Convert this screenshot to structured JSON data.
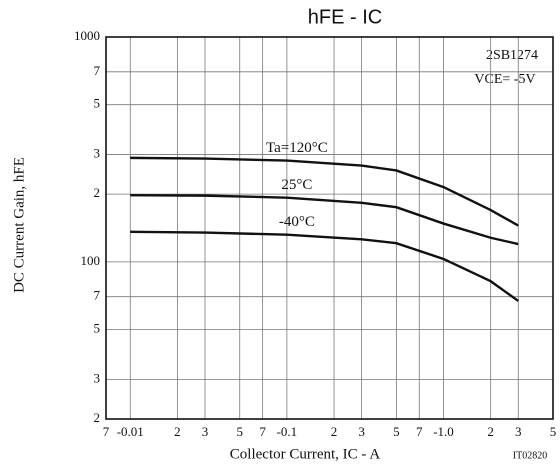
{
  "chart_data": {
    "type": "line",
    "title": "hFE - IC",
    "xlabel": "Collector Current, IC - A",
    "ylabel": "DC Current Gain, hFE",
    "annotations": [
      "2SB1274",
      "VCE= -5V",
      "IT02820"
    ],
    "log_x": true,
    "log_y": true,
    "grid": true,
    "x": [
      0.01,
      0.03,
      0.1,
      0.3,
      0.5,
      1,
      2,
      3
    ],
    "series": [
      {
        "name": "Ta=120°C",
        "color": "#111111",
        "values": [
          290,
          288,
          282,
          268,
          255,
          215,
          170,
          145
        ]
      },
      {
        "name": "25°C",
        "color": "#111111",
        "values": [
          198,
          197,
          193,
          183,
          175,
          148,
          128,
          120
        ]
      },
      {
        "name": "-40°C",
        "color": "#111111",
        "values": [
          136,
          135,
          132,
          126,
          121,
          103,
          82,
          67
        ]
      }
    ],
    "xlim": [
      0.007,
      5
    ],
    "xticks": [
      {
        "value": 0.007,
        "label": "7"
      },
      {
        "value": 0.01,
        "label": "-0.01"
      },
      {
        "value": 0.02,
        "label": "2"
      },
      {
        "value": 0.03,
        "label": "3"
      },
      {
        "value": 0.05,
        "label": "5"
      },
      {
        "value": 0.07,
        "label": "7"
      },
      {
        "value": 0.1,
        "label": "-0.1"
      },
      {
        "value": 0.2,
        "label": "2"
      },
      {
        "value": 0.3,
        "label": "3"
      },
      {
        "value": 0.5,
        "label": "5"
      },
      {
        "value": 0.7,
        "label": "7"
      },
      {
        "value": 1,
        "label": "-1.0"
      },
      2,
      3,
      5
    ],
    "ylim": [
      20,
      1000
    ],
    "yticks": [
      1000,
      {
        "value": 700,
        "label": "7"
      },
      {
        "value": 500,
        "label": "5"
      },
      {
        "value": 300,
        "label": "3"
      },
      {
        "value": 200,
        "label": "2"
      },
      100,
      {
        "value": 70,
        "label": "7"
      },
      {
        "value": 50,
        "label": "5"
      },
      {
        "value": 30,
        "label": "3"
      },
      {
        "value": 20,
        "label": "2"
      }
    ]
  }
}
